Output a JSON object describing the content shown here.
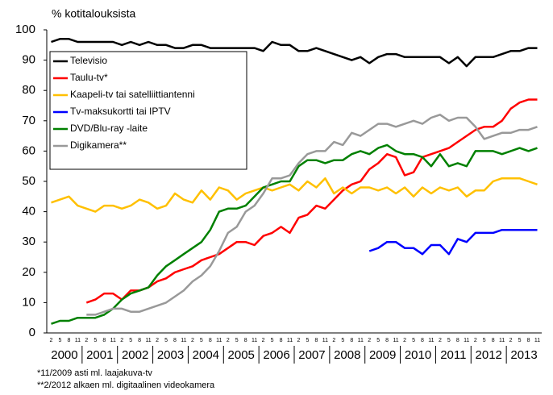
{
  "chart_data": {
    "type": "line",
    "y_label": "% kotitalouksista",
    "categories": [
      "2",
      "5",
      "8",
      "11",
      "2",
      "5",
      "8",
      "11",
      "2",
      "5",
      "8",
      "11",
      "2",
      "5",
      "8",
      "11",
      "2",
      "5",
      "8",
      "11",
      "2",
      "5",
      "8",
      "11",
      "2",
      "5",
      "8",
      "11",
      "2",
      "5",
      "8",
      "11",
      "2",
      "5",
      "8",
      "11",
      "2",
      "5",
      "8",
      "11",
      "2",
      "5",
      "8",
      "11",
      "2",
      "5",
      "8",
      "11",
      "2",
      "5",
      "8",
      "11",
      "2",
      "5",
      "8",
      "11"
    ],
    "year_labels": [
      "2000",
      "2001",
      "2002",
      "2003",
      "2004",
      "2005",
      "2006",
      "2007",
      "2008",
      "2009",
      "2010",
      "2011",
      "2012",
      "2013"
    ],
    "ylim": [
      0,
      100
    ],
    "yticks": [
      0,
      10,
      20,
      30,
      40,
      50,
      60,
      70,
      80,
      90,
      100
    ],
    "series": [
      {
        "name": "Televisio",
        "color": "#000000",
        "values": [
          96,
          97,
          97,
          96,
          96,
          96,
          96,
          96,
          95,
          96,
          95,
          96,
          95,
          95,
          94,
          94,
          95,
          95,
          94,
          94,
          94,
          94,
          94,
          94,
          93,
          96,
          95,
          95,
          93,
          93,
          94,
          93,
          92,
          91,
          90,
          91,
          89,
          91,
          92,
          92,
          91,
          91,
          91,
          91,
          91,
          89,
          91,
          88,
          91,
          91,
          91,
          92,
          93,
          93,
          94,
          94
        ]
      },
      {
        "name": "Taulu-tv*",
        "color": "#ff0000",
        "values": [
          null,
          null,
          null,
          null,
          10,
          11,
          13,
          13,
          11,
          14,
          14,
          15,
          17,
          18,
          20,
          21,
          22,
          24,
          25,
          26,
          28,
          30,
          30,
          29,
          32,
          33,
          35,
          33,
          38,
          39,
          42,
          41,
          44,
          47,
          49,
          50,
          54,
          56,
          59,
          58,
          52,
          53,
          58,
          59,
          60,
          61,
          63,
          65,
          67,
          68,
          68,
          70,
          74,
          76,
          77,
          77
        ]
      },
      {
        "name": "Kaapeli-tv tai satelliittiantenni",
        "color": "#ffc000",
        "values": [
          43,
          44,
          45,
          42,
          41,
          40,
          42,
          42,
          41,
          42,
          44,
          43,
          41,
          42,
          46,
          44,
          43,
          47,
          44,
          48,
          47,
          44,
          46,
          47,
          48,
          47,
          48,
          49,
          47,
          50,
          48,
          51,
          46,
          48,
          46,
          48,
          48,
          47,
          48,
          46,
          48,
          45,
          48,
          46,
          48,
          47,
          48,
          45,
          47,
          47,
          50,
          51,
          51,
          51,
          50,
          49
        ]
      },
      {
        "name": "Tv-maksukortti tai IPTV",
        "color": "#0000ff",
        "values": [
          null,
          null,
          null,
          null,
          null,
          null,
          null,
          null,
          null,
          null,
          null,
          null,
          null,
          null,
          null,
          null,
          null,
          null,
          null,
          null,
          null,
          null,
          null,
          null,
          null,
          null,
          null,
          null,
          null,
          null,
          null,
          null,
          null,
          null,
          null,
          null,
          27,
          28,
          30,
          30,
          28,
          28,
          26,
          29,
          29,
          26,
          31,
          30,
          33,
          33,
          33,
          34,
          34,
          34,
          34,
          34
        ]
      },
      {
        "name": "DVD/Blu-ray -laite",
        "color": "#008000",
        "values": [
          3,
          4,
          4,
          5,
          5,
          5,
          6,
          8,
          11,
          13,
          14,
          15,
          19,
          22,
          24,
          26,
          28,
          30,
          34,
          40,
          41,
          41,
          42,
          45,
          48,
          49,
          50,
          50,
          55,
          57,
          57,
          56,
          57,
          57,
          59,
          60,
          59,
          61,
          62,
          60,
          59,
          59,
          58,
          55,
          59,
          55,
          56,
          55,
          60,
          60,
          60,
          59,
          60,
          61,
          60,
          61
        ]
      },
      {
        "name": "Digikamera**",
        "color": "#999999",
        "values": [
          null,
          null,
          null,
          null,
          6,
          6,
          7,
          8,
          8,
          7,
          7,
          8,
          9,
          10,
          12,
          14,
          17,
          19,
          22,
          27,
          33,
          35,
          40,
          42,
          46,
          51,
          51,
          52,
          56,
          59,
          60,
          60,
          63,
          62,
          66,
          65,
          67,
          69,
          69,
          68,
          69,
          70,
          69,
          71,
          72,
          70,
          71,
          71,
          68,
          64,
          65,
          66,
          66,
          67,
          67,
          68
        ]
      }
    ],
    "notes": [
      "*11/2009 asti ml. laajakuva-tv",
      "**2/2012 alkaen ml. digitaalinen videokamera"
    ]
  }
}
